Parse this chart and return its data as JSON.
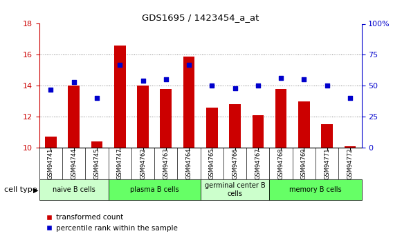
{
  "title": "GDS1695 / 1423454_a_at",
  "samples": [
    "GSM94741",
    "GSM94744",
    "GSM94745",
    "GSM94747",
    "GSM94762",
    "GSM94763",
    "GSM94764",
    "GSM94765",
    "GSM94766",
    "GSM94767",
    "GSM94768",
    "GSM94769",
    "GSM94771",
    "GSM94772"
  ],
  "bar_values": [
    10.7,
    14.0,
    10.4,
    16.6,
    14.0,
    13.8,
    15.9,
    12.6,
    12.8,
    12.1,
    13.8,
    13.0,
    11.5,
    10.1
  ],
  "dot_values": [
    47,
    53,
    40,
    67,
    54,
    55,
    67,
    50,
    48,
    50,
    56,
    55,
    50,
    40
  ],
  "bar_color": "#cc0000",
  "dot_color": "#0000cc",
  "ylim_left": [
    10,
    18
  ],
  "ylim_right": [
    0,
    100
  ],
  "yticks_left": [
    10,
    12,
    14,
    16,
    18
  ],
  "yticks_right": [
    0,
    25,
    50,
    75,
    100
  ],
  "ytick_labels_right": [
    "0",
    "25",
    "50",
    "75",
    "100%"
  ],
  "cell_groups": [
    {
      "label": "naive B cells",
      "start": 0,
      "end": 3,
      "color": "#ccffcc"
    },
    {
      "label": "plasma B cells",
      "start": 3,
      "end": 7,
      "color": "#66ff66"
    },
    {
      "label": "germinal center B\ncells",
      "start": 7,
      "end": 10,
      "color": "#ccffcc"
    },
    {
      "label": "memory B cells",
      "start": 10,
      "end": 14,
      "color": "#66ff66"
    }
  ],
  "cell_type_label": "cell type",
  "legend_bar_label": "transformed count",
  "legend_dot_label": "percentile rank within the sample",
  "bg_color": "#ffffff",
  "xtick_bg_color": "#d0d0d0",
  "grid_color": "#808080",
  "spine_color": "#000000"
}
